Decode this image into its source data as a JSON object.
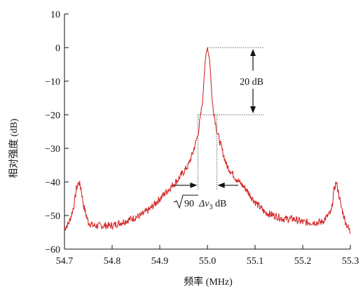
{
  "chart_data": {
    "type": "line",
    "title": "",
    "xlabel": "频率 (MHz)",
    "ylabel": "相对强度 (dB)",
    "xlim": [
      54.7,
      55.3
    ],
    "ylim": [
      -60,
      10
    ],
    "x_ticks": [
      54.7,
      54.8,
      54.9,
      55.0,
      55.1,
      55.2,
      55.3
    ],
    "x_tick_labels": [
      "54.7",
      "54.8",
      "54.9",
      "55.0",
      "55.1",
      "55.2",
      "55.3"
    ],
    "y_ticks": [
      10,
      0,
      -10,
      -20,
      -30,
      -40,
      -50,
      -60
    ],
    "y_tick_labels": [
      "10",
      "0",
      "−10",
      "−20",
      "−30",
      "−40",
      "−50",
      "−60"
    ],
    "grid": false,
    "line_color": "#d42a2a",
    "series": [
      {
        "x": [
          54.7,
          54.71,
          54.72,
          54.725,
          54.73,
          54.735,
          54.74,
          54.75,
          54.76,
          54.78,
          54.8,
          54.82,
          54.84,
          54.86,
          54.88,
          54.9,
          54.92,
          54.94,
          54.96,
          54.97,
          54.98,
          54.99,
          54.995,
          55.0,
          55.005,
          55.01,
          55.02,
          55.03,
          55.04,
          55.06,
          55.08,
          55.1,
          55.12,
          55.14,
          55.16,
          55.18,
          55.2,
          55.22,
          55.24,
          55.26,
          55.265,
          55.27,
          55.275,
          55.28,
          55.29,
          55.3
        ],
        "y": [
          -54,
          -52,
          -47,
          -42,
          -40,
          -42,
          -47,
          -52,
          -53,
          -53,
          -53,
          -52,
          -51,
          -50,
          -48,
          -45,
          -42,
          -39,
          -35,
          -31,
          -26,
          -16,
          -4,
          0,
          -4,
          -16,
          -25,
          -30,
          -35,
          -39,
          -42,
          -46,
          -49,
          -50,
          -51,
          -51,
          -52,
          -52,
          -52,
          -49,
          -43,
          -40,
          -43,
          -47,
          -52,
          -55
        ]
      }
    ],
    "annotations": {
      "db_label": "20 dB",
      "width_label_sqrt": "90",
      "width_label_delta": "Δν",
      "width_label_sub": "3",
      "width_label_unit": " dB",
      "peak_level_db": 0,
      "lower_level_db": -20,
      "width_left_mhz": 54.98,
      "width_right_mhz": 55.02,
      "arrow_level_db": -41
    }
  }
}
